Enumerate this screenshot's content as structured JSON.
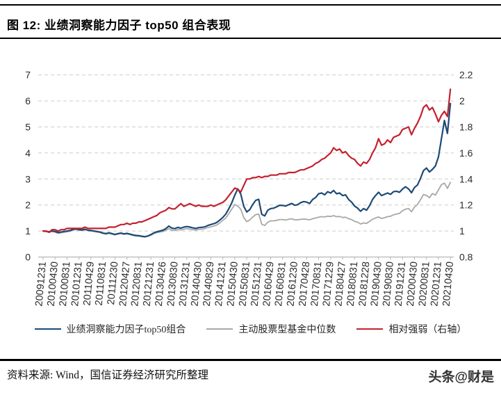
{
  "header": {
    "title": "图 12:  业绩洞察能力因子 top50 组合表现"
  },
  "footer": {
    "source": "资料来源: Wind，国信证券经济研究所整理",
    "watermark": "头条@财是"
  },
  "colors": {
    "portfolio_line": "#1c4a74",
    "fund_median_line": "#a8a8a8",
    "relative_strength_line": "#c4202e",
    "grid": "#cccccc",
    "axis": "#b5b5b5",
    "rule": "#000000"
  },
  "chart_data": {
    "type": "line",
    "title": "业绩洞察能力因子 top50 组合表现",
    "x_is_monthly_from": "20091231",
    "x_point_count": 137,
    "x_tick_labels": [
      "20091231",
      "20100430",
      "20100831",
      "20101231",
      "20110429",
      "20110831",
      "20111230",
      "20120427",
      "20120831",
      "20121231",
      "20130426",
      "20130830",
      "20131231",
      "20140430",
      "20140829",
      "20141231",
      "20150430",
      "20150831",
      "20151231",
      "20160429",
      "20160831",
      "20161230",
      "20170428",
      "20170831",
      "20171229",
      "20180427",
      "20180831",
      "20181228",
      "20190430",
      "20190830",
      "20191231",
      "20200430",
      "20200831",
      "20201231",
      "20210430"
    ],
    "x_tick_every_n_points": 4,
    "left_axis": {
      "min": 0,
      "max": 7,
      "ticks": [
        0,
        1,
        2,
        3,
        4,
        5,
        6,
        7
      ]
    },
    "right_axis": {
      "min": 0.8,
      "max": 2.2,
      "ticks": [
        0.8,
        1,
        1.2,
        1.4,
        1.6,
        1.8,
        2,
        2.2
      ]
    },
    "grid": "dashed-horizontal",
    "legend_position": "bottom",
    "series": [
      {
        "name": "业绩洞察能力因子top50组合",
        "axis": "left",
        "color": "#1c4a74",
        "values": [
          1.0,
          0.99,
          0.97,
          1.0,
          0.98,
          0.94,
          0.96,
          0.98,
          1.0,
          1.02,
          1.06,
          1.08,
          1.05,
          1.04,
          1.07,
          1.03,
          1.02,
          1.0,
          0.98,
          0.96,
          0.92,
          0.9,
          0.93,
          0.9,
          0.87,
          0.9,
          0.92,
          0.89,
          0.91,
          0.88,
          0.85,
          0.83,
          0.82,
          0.8,
          0.78,
          0.81,
          0.86,
          0.93,
          0.97,
          1.0,
          1.03,
          1.09,
          1.19,
          1.11,
          1.09,
          1.14,
          1.11,
          1.15,
          1.17,
          1.15,
          1.12,
          1.1,
          1.13,
          1.14,
          1.16,
          1.21,
          1.25,
          1.28,
          1.33,
          1.42,
          1.52,
          1.65,
          1.85,
          2.08,
          2.38,
          2.62,
          2.42,
          1.95,
          1.73,
          1.82,
          2.02,
          2.18,
          2.22,
          1.64,
          1.58,
          1.8,
          1.86,
          1.88,
          1.93,
          1.99,
          1.98,
          1.96,
          2.01,
          2.06,
          1.99,
          2.01,
          2.09,
          2.13,
          2.11,
          2.06,
          2.21,
          2.29,
          2.43,
          2.46,
          2.39,
          2.51,
          2.46,
          2.56,
          2.43,
          2.46,
          2.36,
          2.39,
          2.21,
          2.11,
          1.96,
          1.88,
          1.76,
          1.86,
          1.8,
          1.97,
          2.21,
          2.36,
          2.49,
          2.36,
          2.41,
          2.46,
          2.41,
          2.51,
          2.53,
          2.49,
          2.61,
          2.7,
          2.62,
          2.47,
          2.67,
          2.77,
          3.02,
          3.32,
          3.42,
          3.27,
          3.37,
          3.5,
          3.85,
          4.55,
          5.25,
          4.75,
          5.9
        ]
      },
      {
        "name": "主动股票型基金中位数",
        "axis": "left",
        "color": "#a8a8a8",
        "values": [
          1.0,
          0.98,
          0.95,
          0.98,
          0.96,
          0.91,
          0.93,
          0.95,
          0.97,
          0.99,
          1.04,
          1.06,
          1.03,
          1.02,
          1.05,
          1.01,
          1.0,
          0.98,
          0.96,
          0.94,
          0.9,
          0.88,
          0.91,
          0.88,
          0.85,
          0.88,
          0.9,
          0.87,
          0.89,
          0.86,
          0.83,
          0.81,
          0.8,
          0.78,
          0.77,
          0.8,
          0.84,
          0.9,
          0.94,
          0.96,
          0.98,
          1.03,
          1.09,
          1.03,
          1.02,
          1.06,
          1.04,
          1.07,
          1.09,
          1.07,
          1.05,
          1.04,
          1.06,
          1.07,
          1.09,
          1.13,
          1.16,
          1.19,
          1.23,
          1.31,
          1.41,
          1.5,
          1.66,
          1.84,
          2.02,
          1.96,
          1.84,
          1.52,
          1.36,
          1.42,
          1.54,
          1.63,
          1.65,
          1.26,
          1.21,
          1.34,
          1.39,
          1.39,
          1.41,
          1.44,
          1.44,
          1.42,
          1.45,
          1.47,
          1.43,
          1.43,
          1.45,
          1.46,
          1.45,
          1.43,
          1.47,
          1.5,
          1.53,
          1.55,
          1.54,
          1.57,
          1.56,
          1.59,
          1.55,
          1.56,
          1.52,
          1.53,
          1.47,
          1.44,
          1.37,
          1.34,
          1.27,
          1.31,
          1.29,
          1.37,
          1.45,
          1.5,
          1.54,
          1.48,
          1.51,
          1.55,
          1.57,
          1.62,
          1.65,
          1.68,
          1.78,
          1.84,
          1.86,
          1.74,
          1.92,
          2.02,
          2.2,
          2.4,
          2.37,
          2.28,
          2.44,
          2.38,
          2.58,
          2.78,
          2.84,
          2.64,
          2.87
        ]
      },
      {
        "name": "相对强弱（右轴）",
        "axis": "right",
        "color": "#c4202e",
        "values": [
          1.0,
          1.0,
          0.99,
          1.01,
          1.01,
          1.0,
          1.01,
          1.01,
          1.02,
          1.02,
          1.02,
          1.02,
          1.02,
          1.02,
          1.03,
          1.02,
          1.02,
          1.02,
          1.02,
          1.02,
          1.02,
          1.02,
          1.03,
          1.03,
          1.03,
          1.04,
          1.05,
          1.05,
          1.06,
          1.05,
          1.06,
          1.06,
          1.07,
          1.07,
          1.08,
          1.09,
          1.1,
          1.11,
          1.12,
          1.14,
          1.15,
          1.16,
          1.18,
          1.17,
          1.17,
          1.19,
          1.21,
          1.19,
          1.2,
          1.21,
          1.2,
          1.19,
          1.2,
          1.19,
          1.19,
          1.19,
          1.2,
          1.19,
          1.2,
          1.21,
          1.22,
          1.24,
          1.27,
          1.3,
          1.33,
          1.32,
          1.3,
          1.35,
          1.4,
          1.4,
          1.41,
          1.41,
          1.42,
          1.41,
          1.42,
          1.42,
          1.43,
          1.43,
          1.43,
          1.44,
          1.44,
          1.44,
          1.45,
          1.45,
          1.45,
          1.46,
          1.47,
          1.47,
          1.48,
          1.49,
          1.5,
          1.52,
          1.53,
          1.55,
          1.56,
          1.58,
          1.6,
          1.64,
          1.62,
          1.63,
          1.6,
          1.61,
          1.58,
          1.56,
          1.55,
          1.52,
          1.5,
          1.53,
          1.52,
          1.55,
          1.6,
          1.64,
          1.71,
          1.66,
          1.67,
          1.7,
          1.68,
          1.72,
          1.73,
          1.74,
          1.78,
          1.79,
          1.8,
          1.74,
          1.79,
          1.83,
          1.88,
          1.95,
          1.97,
          1.93,
          1.95,
          1.9,
          1.84,
          1.89,
          1.92,
          1.88,
          2.09
        ]
      }
    ]
  }
}
